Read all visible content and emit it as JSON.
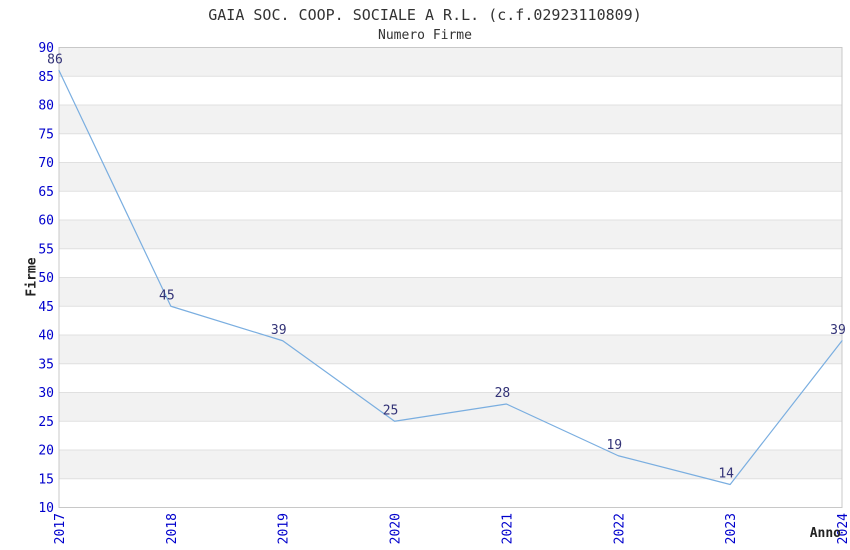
{
  "title": "GAIA SOC. COOP. SOCIALE A R.L. (c.f.02923110809)",
  "subtitle": "Numero Firme",
  "chart_data": {
    "type": "line",
    "x": [
      "2017",
      "2018",
      "2019",
      "2020",
      "2021",
      "2022",
      "2023",
      "2024"
    ],
    "series": [
      {
        "name": "Numero Firme",
        "values": [
          86,
          45,
          39,
          25,
          28,
          19,
          14,
          39
        ]
      }
    ],
    "title": "GAIA SOC. COOP. SOCIALE A R.L. (c.f.02923110809)",
    "subtitle": "Numero Firme",
    "xlabel": "Anno",
    "ylabel": "Firme",
    "ylim": [
      10,
      90
    ],
    "ytick_step": 5,
    "grid": true,
    "legend": "none",
    "point_labels_visible": true,
    "colors": {
      "line": "#7AAEE0",
      "axis_tick_label": "#0000CC",
      "point_label": "#333377",
      "band": "#F2F2F2",
      "gridline": "#E0E0E0",
      "plot_border": "#C8C8C8",
      "title_text": "#333333"
    }
  }
}
